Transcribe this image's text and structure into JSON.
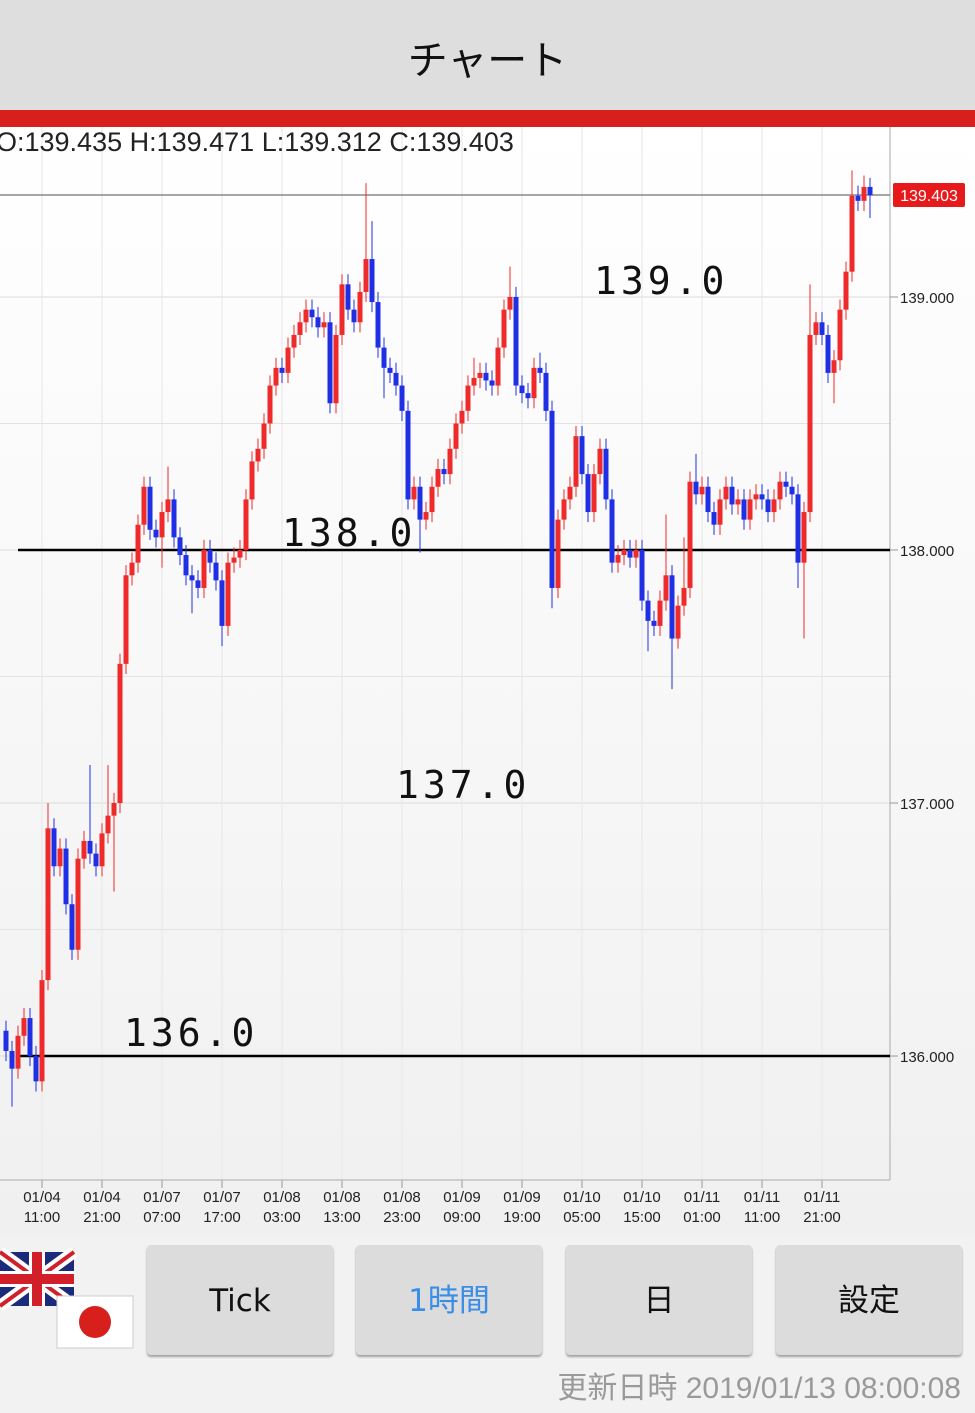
{
  "header": {
    "title": "チャート"
  },
  "ohlc_text": "O:139.435 H:139.471 L:139.312 C:139.403",
  "chart_data": {
    "type": "candlestick",
    "categories": [
      null,
      null,
      null,
      null,
      null,
      null,
      "01/04 11:00",
      null,
      null,
      null,
      null,
      null,
      null,
      null,
      null,
      null,
      "01/04 21:00",
      null,
      null,
      null,
      null,
      null,
      null,
      null,
      null,
      null,
      "01/07 07:00",
      null,
      null,
      null,
      null,
      null,
      null,
      null,
      null,
      null,
      "01/07 17:00",
      null,
      null,
      null,
      null,
      null,
      null,
      null,
      null,
      null,
      "01/08 03:00",
      null,
      null,
      null,
      null,
      null,
      null,
      null,
      null,
      null,
      "01/08 13:00",
      null,
      null,
      null,
      null,
      null,
      null,
      null,
      null,
      null,
      "01/08 23:00",
      null,
      null,
      null,
      null,
      null,
      null,
      null,
      null,
      null,
      "01/09 09:00",
      null,
      null,
      null,
      null,
      null,
      null,
      null,
      null,
      null,
      "01/09 19:00",
      null,
      null,
      null,
      null,
      null,
      null,
      null,
      null,
      null,
      "01/10 05:00",
      null,
      null,
      null,
      null,
      null,
      null,
      null,
      null,
      null,
      "01/10 15:00",
      null,
      null,
      null,
      null,
      null,
      null,
      null,
      null,
      null,
      "01/11 01:00",
      null,
      null,
      null,
      null,
      null,
      null,
      null,
      null,
      null,
      "01/11 11:00",
      null,
      null,
      null,
      null,
      null,
      null,
      null,
      null,
      null,
      "01/11 21:00",
      null,
      null,
      null,
      null,
      null,
      null,
      null,
      null
    ],
    "open": [
      136.1,
      136.02,
      135.95,
      136.08,
      136.15,
      136.0,
      135.9,
      136.3,
      136.9,
      136.75,
      136.82,
      136.6,
      136.42,
      136.78,
      136.85,
      136.8,
      136.75,
      136.88,
      136.95,
      137.0,
      137.55,
      137.9,
      137.95,
      138.1,
      138.25,
      138.08,
      138.05,
      138.15,
      138.2,
      138.05,
      137.98,
      137.9,
      137.88,
      137.85,
      138.0,
      137.95,
      137.88,
      137.7,
      137.95,
      137.97,
      138.0,
      138.2,
      138.35,
      138.4,
      138.5,
      138.65,
      138.72,
      138.7,
      138.8,
      138.85,
      138.9,
      138.95,
      138.92,
      138.88,
      138.9,
      138.58,
      138.85,
      139.05,
      138.95,
      138.9,
      139.02,
      139.15,
      138.98,
      138.8,
      138.72,
      138.7,
      138.65,
      138.55,
      138.2,
      138.25,
      138.12,
      138.15,
      138.25,
      138.32,
      138.3,
      138.4,
      138.5,
      138.55,
      138.65,
      138.68,
      138.7,
      138.67,
      138.65,
      138.8,
      138.95,
      139.0,
      138.65,
      138.62,
      138.6,
      138.72,
      138.7,
      138.55,
      137.85,
      138.12,
      138.2,
      138.25,
      138.45,
      138.3,
      138.15,
      138.3,
      138.4,
      138.2,
      137.95,
      137.98,
      138.0,
      137.97,
      138.0,
      137.8,
      137.72,
      137.7,
      137.8,
      137.9,
      137.65,
      137.78,
      137.85,
      138.27,
      138.22,
      138.25,
      138.15,
      138.1,
      138.2,
      138.25,
      138.18,
      138.2,
      138.12,
      138.2,
      138.22,
      138.2,
      138.15,
      138.2,
      138.27,
      138.25,
      138.22,
      137.95,
      138.15,
      138.85,
      138.9,
      138.85,
      138.7,
      138.75,
      138.95,
      139.1,
      139.4,
      139.38,
      139.435
    ],
    "high": [
      136.14,
      136.06,
      136.12,
      136.19,
      136.19,
      136.04,
      136.34,
      137.0,
      136.94,
      136.86,
      136.86,
      136.64,
      136.82,
      136.89,
      137.15,
      136.84,
      136.92,
      137.15,
      137.04,
      137.59,
      137.94,
      137.99,
      138.14,
      138.29,
      138.29,
      138.12,
      138.19,
      138.33,
      138.24,
      138.09,
      138.02,
      137.94,
      137.92,
      138.04,
      138.04,
      137.99,
      137.92,
      137.99,
      138.01,
      138.04,
      138.24,
      138.39,
      138.44,
      138.54,
      138.69,
      138.76,
      138.76,
      138.84,
      138.89,
      138.94,
      138.99,
      138.99,
      138.96,
      138.94,
      138.94,
      138.89,
      139.09,
      139.09,
      138.99,
      139.06,
      139.45,
      139.3,
      139.02,
      138.84,
      138.76,
      138.74,
      138.69,
      138.59,
      138.29,
      138.29,
      138.19,
      138.29,
      138.36,
      138.36,
      138.44,
      138.54,
      138.59,
      138.69,
      138.76,
      138.74,
      138.74,
      138.71,
      138.84,
      138.99,
      139.12,
      139.04,
      138.69,
      138.66,
      138.76,
      138.78,
      138.74,
      138.59,
      138.16,
      138.24,
      138.29,
      138.49,
      138.49,
      138.34,
      138.34,
      138.44,
      138.44,
      138.24,
      138.02,
      138.04,
      138.04,
      138.04,
      138.04,
      137.84,
      137.76,
      137.84,
      138.14,
      137.94,
      137.82,
      138.05,
      138.31,
      138.38,
      138.29,
      138.29,
      138.19,
      138.24,
      138.29,
      138.29,
      138.24,
      138.24,
      138.24,
      138.26,
      138.26,
      138.24,
      138.24,
      138.31,
      138.31,
      138.29,
      138.26,
      138.19,
      139.05,
      138.94,
      138.94,
      138.89,
      138.79,
      138.99,
      139.14,
      139.5,
      139.44,
      139.48,
      139.471
    ],
    "low": [
      135.98,
      135.8,
      135.91,
      136.04,
      135.96,
      135.86,
      135.86,
      136.26,
      136.71,
      136.71,
      136.56,
      136.38,
      136.38,
      136.74,
      136.76,
      136.71,
      136.71,
      136.84,
      136.65,
      136.96,
      137.51,
      137.86,
      137.91,
      138.06,
      138.04,
      138.01,
      137.93,
      138.11,
      138.01,
      137.94,
      137.86,
      137.75,
      137.81,
      137.81,
      137.91,
      137.84,
      137.62,
      137.66,
      137.91,
      137.93,
      137.96,
      138.16,
      138.31,
      138.36,
      138.46,
      138.61,
      138.66,
      138.66,
      138.76,
      138.81,
      138.86,
      138.88,
      138.84,
      138.84,
      138.54,
      138.54,
      138.81,
      138.91,
      138.86,
      138.86,
      138.98,
      138.94,
      138.76,
      138.6,
      138.66,
      138.61,
      138.51,
      138.16,
      138.16,
      137.99,
      138.08,
      138.11,
      138.21,
      138.26,
      138.26,
      138.36,
      138.46,
      138.51,
      138.61,
      138.64,
      138.63,
      138.61,
      138.61,
      138.76,
      138.91,
      138.61,
      138.58,
      138.56,
      138.56,
      138.66,
      138.51,
      137.77,
      137.81,
      138.08,
      138.16,
      138.21,
      138.26,
      138.11,
      138.11,
      138.26,
      138.16,
      137.91,
      137.91,
      137.94,
      137.93,
      137.93,
      137.76,
      137.6,
      137.66,
      137.66,
      137.76,
      137.45,
      137.61,
      137.74,
      137.81,
      138.18,
      138.18,
      138.11,
      138.06,
      138.06,
      138.16,
      138.14,
      138.14,
      138.08,
      138.08,
      138.16,
      138.16,
      138.11,
      138.11,
      138.16,
      138.21,
      138.18,
      137.85,
      137.65,
      138.11,
      138.81,
      138.81,
      138.66,
      138.58,
      138.71,
      138.91,
      139.06,
      139.34,
      139.34,
      139.312
    ],
    "close": [
      136.02,
      135.95,
      136.08,
      136.15,
      136.0,
      135.9,
      136.3,
      136.9,
      136.75,
      136.82,
      136.6,
      136.42,
      136.78,
      136.85,
      136.8,
      136.75,
      136.88,
      136.95,
      137.0,
      137.55,
      137.9,
      137.95,
      138.1,
      138.25,
      138.08,
      138.05,
      138.15,
      138.2,
      138.05,
      137.98,
      137.9,
      137.88,
      137.85,
      138.0,
      137.95,
      137.88,
      137.7,
      137.95,
      137.97,
      138.0,
      138.2,
      138.35,
      138.4,
      138.5,
      138.65,
      138.72,
      138.7,
      138.8,
      138.85,
      138.9,
      138.95,
      138.92,
      138.88,
      138.9,
      138.58,
      138.85,
      139.05,
      138.95,
      138.9,
      139.02,
      139.15,
      138.98,
      138.8,
      138.72,
      138.7,
      138.65,
      138.55,
      138.2,
      138.25,
      138.12,
      138.15,
      138.25,
      138.32,
      138.3,
      138.4,
      138.5,
      138.55,
      138.65,
      138.68,
      138.7,
      138.67,
      138.65,
      138.8,
      138.95,
      139.0,
      138.65,
      138.62,
      138.6,
      138.72,
      138.7,
      138.55,
      137.85,
      138.12,
      138.2,
      138.25,
      138.45,
      138.3,
      138.15,
      138.3,
      138.4,
      138.2,
      137.95,
      137.98,
      138.0,
      137.97,
      138.0,
      137.8,
      137.72,
      137.7,
      137.8,
      137.9,
      137.65,
      137.78,
      137.85,
      138.27,
      138.22,
      138.25,
      138.15,
      138.1,
      138.2,
      138.25,
      138.18,
      138.2,
      138.12,
      138.2,
      138.22,
      138.2,
      138.15,
      138.2,
      138.27,
      138.25,
      138.22,
      137.95,
      138.15,
      138.85,
      138.9,
      138.85,
      138.7,
      138.75,
      138.95,
      139.1,
      139.4,
      139.38,
      139.435,
      139.403
    ],
    "up_color": "#ee2a2a",
    "down_color": "#1f2fe6",
    "ylim": [
      135.51,
      139.66
    ],
    "yticks": [
      {
        "value": 139,
        "label": "139.000"
      },
      {
        "value": 138,
        "label": "138.000"
      },
      {
        "value": 137,
        "label": "137.000"
      },
      {
        "value": 136,
        "label": "136.000"
      }
    ],
    "minor_yticks": [
      138.5,
      137.5,
      136.5
    ],
    "hlines": [
      138,
      136
    ],
    "annotations": [
      "139.0",
      "138.0",
      "137.0",
      "136.0"
    ],
    "last_price": {
      "value": 139.403,
      "label": "139.403"
    },
    "grid": true
  },
  "ui": {
    "buttons": [
      "Tick",
      "1時間",
      "日",
      "設定"
    ],
    "selected_button": 1,
    "updated_label": "更新日時",
    "updated_value": "2019/01/13 08:00:08"
  }
}
